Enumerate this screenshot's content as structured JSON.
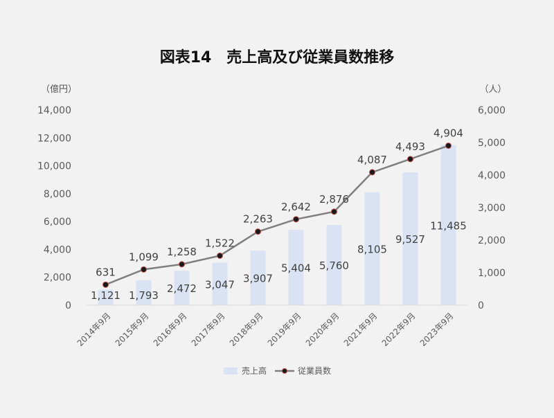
{
  "chart_data": {
    "type": "bar",
    "title": "図表14　売上高及び従業員数推移",
    "left_unit": "（億円）",
    "right_unit": "（人）",
    "categories": [
      "2014年9月",
      "2015年9月",
      "2016年9月",
      "2017年9月",
      "2018年9月",
      "2019年9月",
      "2020年9月",
      "2021年9月",
      "2022年9月",
      "2023年9月"
    ],
    "left_axis": {
      "min": 0,
      "max": 14000,
      "ticks": [
        "0",
        "2,000",
        "4,000",
        "6,000",
        "8,000",
        "10,000",
        "12,000",
        "14,000"
      ]
    },
    "right_axis": {
      "min": 0,
      "max": 6000,
      "ticks": [
        "0",
        "1,000",
        "2,000",
        "3,000",
        "4,000",
        "5,000",
        "6,000"
      ]
    },
    "series": [
      {
        "name": "売上高",
        "kind": "bar",
        "axis": "left",
        "color": "#dae3f3",
        "values": [
          1121,
          1793,
          2472,
          3047,
          3907,
          5404,
          5760,
          8105,
          9527,
          11485
        ],
        "labels": [
          "1,121",
          "1,793",
          "2,472",
          "3,047",
          "3,907",
          "5,404",
          "5,760",
          "8,105",
          "9,527",
          "11,485"
        ]
      },
      {
        "name": "従業員数",
        "kind": "line",
        "axis": "right",
        "color": "#7f7f7f",
        "marker_color": "#1a1a1a",
        "values": [
          631,
          1099,
          1258,
          1522,
          2263,
          2642,
          2876,
          4087,
          4493,
          4904
        ],
        "labels": [
          "631",
          "1,099",
          "1,258",
          "1,522",
          "2,263",
          "2,642",
          "2,876",
          "4,087",
          "4,493",
          "4,904"
        ]
      }
    ],
    "grid": false,
    "legend_position": "bottom"
  }
}
